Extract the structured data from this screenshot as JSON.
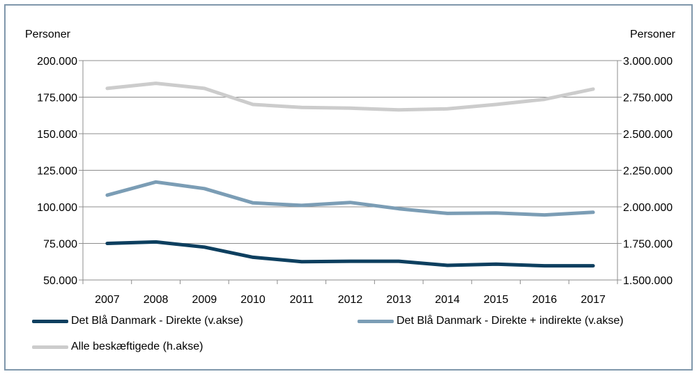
{
  "chart_data": {
    "type": "line",
    "left_unit": "Personer",
    "right_unit": "Personer",
    "categories": [
      "2007",
      "2008",
      "2009",
      "2010",
      "2011",
      "2012",
      "2013",
      "2014",
      "2015",
      "2016",
      "2017"
    ],
    "left_axis": {
      "min": 50000,
      "max": 200000,
      "step": 25000,
      "tick_labels": [
        "50.000",
        "75.000",
        "100.000",
        "125.000",
        "150.000",
        "175.000",
        "200.000"
      ]
    },
    "right_axis": {
      "min": 1500000,
      "max": 3000000,
      "step": 250000,
      "tick_labels": [
        "1.500.000",
        "1.750.000",
        "2.000.000",
        "2.250.000",
        "2.500.000",
        "2.750.000",
        "3.000.000"
      ]
    },
    "grid": true,
    "series": [
      {
        "name": "Det Blå Danmark - Direkte (v.akse)",
        "axis": "left",
        "color": "#0d3f5f",
        "values": [
          75000,
          76000,
          72500,
          65500,
          62500,
          62800,
          62800,
          60000,
          60800,
          59700,
          59700
        ]
      },
      {
        "name": "Det Blå Danmark - Direkte + indirekte (v.akse)",
        "axis": "left",
        "color": "#7b9db5",
        "values": [
          108000,
          117000,
          112500,
          102700,
          101000,
          103000,
          98700,
          95500,
          95800,
          94500,
          96300
        ]
      },
      {
        "name": "Alle beskæftigede (h.akse)",
        "axis": "right",
        "color": "#cccccc",
        "values": [
          2810000,
          2845000,
          2810000,
          2700000,
          2680000,
          2675000,
          2663000,
          2670000,
          2700000,
          2735000,
          2805000
        ]
      }
    ]
  }
}
